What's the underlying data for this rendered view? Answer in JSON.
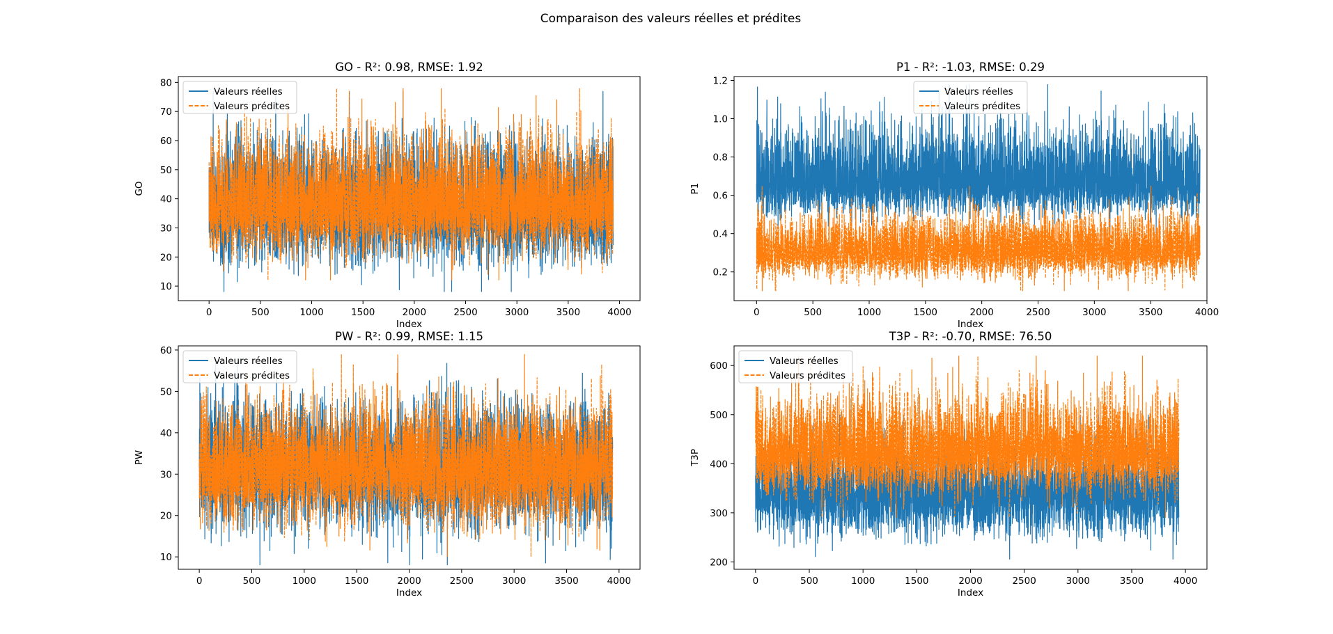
{
  "figure": {
    "suptitle": "Comparaison des valeurs réelles et prédites"
  },
  "legend_labels": {
    "real": "Valeurs réelles",
    "pred": "Valeurs prédites"
  },
  "colors": {
    "real": "#1f77b4",
    "pred": "#ff7f0e"
  },
  "chart_data": [
    {
      "type": "line",
      "title": "GO - R²: 0.98, RMSE: 1.92",
      "xlabel": "Index",
      "ylabel": "GO",
      "xlim": [
        -300,
        4200
      ],
      "ylim": [
        5,
        82
      ],
      "xticks": [
        0,
        500,
        1000,
        1500,
        2000,
        2500,
        3000,
        3500,
        4000
      ],
      "yticks": [
        10,
        20,
        30,
        40,
        50,
        60,
        70,
        80
      ],
      "legend": "upper-left",
      "n_points": 3940,
      "series": [
        {
          "name": "Valeurs réelles",
          "style": "solid",
          "mean": 36,
          "range": [
            8,
            77
          ]
        },
        {
          "name": "Valeurs prédites",
          "style": "dashed",
          "mean": 37,
          "range": [
            12,
            78
          ]
        }
      ]
    },
    {
      "type": "line",
      "title": "P1 - R²: -1.03, RMSE: 0.29",
      "xlabel": "Index",
      "ylabel": "P1",
      "xlim": [
        -200,
        4000
      ],
      "ylim": [
        0.05,
        1.22
      ],
      "xticks": [
        0,
        500,
        1000,
        1500,
        2000,
        2500,
        3000,
        3500,
        4000
      ],
      "yticks": [
        0.2,
        0.4,
        0.6,
        0.8,
        1.0,
        1.2
      ],
      "yticklabels": [
        "0.2",
        "0.4",
        "0.6",
        "0.8",
        "1.0",
        "1.2"
      ],
      "legend": "upper-center",
      "n_points": 3940,
      "series": [
        {
          "name": "Valeurs réelles",
          "style": "solid",
          "mean": 0.66,
          "range": [
            0.4,
            1.18
          ]
        },
        {
          "name": "Valeurs prédites",
          "style": "dashed",
          "mean": 0.3,
          "range": [
            0.1,
            0.65
          ]
        }
      ]
    },
    {
      "type": "line",
      "title": "PW - R²: 0.99, RMSE: 1.15",
      "xlabel": "Index",
      "ylabel": "PW",
      "xlim": [
        -200,
        4200
      ],
      "ylim": [
        7,
        61
      ],
      "xticks": [
        0,
        500,
        1000,
        1500,
        2000,
        2500,
        3000,
        3500,
        4000
      ],
      "yticks": [
        10,
        20,
        30,
        40,
        50,
        60
      ],
      "legend": "upper-left",
      "n_points": 3940,
      "series": [
        {
          "name": "Valeurs réelles",
          "style": "solid",
          "mean": 31,
          "range": [
            8,
            58
          ]
        },
        {
          "name": "Valeurs prédites",
          "style": "dashed",
          "mean": 31,
          "range": [
            10,
            59
          ]
        }
      ]
    },
    {
      "type": "line",
      "title": "T3P - R²: -0.70, RMSE: 76.50",
      "xlabel": "Index",
      "ylabel": "T3P",
      "xlim": [
        -200,
        4200
      ],
      "ylim": [
        185,
        640
      ],
      "xticks": [
        0,
        500,
        1000,
        1500,
        2000,
        2500,
        3000,
        3500,
        4000
      ],
      "yticks": [
        200,
        300,
        400,
        500,
        600
      ],
      "legend": "upper-left",
      "n_points": 3940,
      "series": [
        {
          "name": "Valeurs réelles",
          "style": "solid",
          "mean": 335,
          "range": [
            205,
            500
          ]
        },
        {
          "name": "Valeurs prédites",
          "style": "dashed",
          "mean": 420,
          "range": [
            290,
            620
          ]
        }
      ]
    }
  ]
}
